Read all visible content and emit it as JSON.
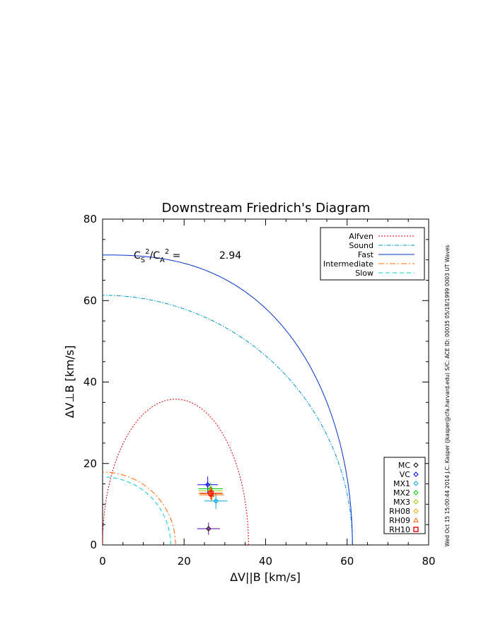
{
  "chart_data": {
    "type": "line",
    "title": "Downstream Friedrich's Diagram",
    "xlabel": "ΔV||B [km/s]",
    "ylabel": "ΔV⊥B [km/s]",
    "xlim": [
      0,
      80
    ],
    "ylim": [
      0,
      80
    ],
    "x_ticks": [
      "0",
      "20",
      "40",
      "60",
      "80"
    ],
    "y_ticks": [
      "0",
      "20",
      "40",
      "60",
      "80"
    ],
    "grid": false,
    "annotation": {
      "label": "CS²/CA² =",
      "value": "2.94"
    },
    "legend_position": "top-right",
    "curves": [
      {
        "name": "Alfven",
        "color": "#dd0000",
        "dash": "2,2",
        "kind": "alfven",
        "radius": 35.8
      },
      {
        "name": "Sound",
        "color": "#0099cc",
        "dash": "6,2,1.5,2",
        "kind": "circle",
        "radius": 61.3
      },
      {
        "name": "Fast",
        "color": "#0033cc",
        "dash": "",
        "kind": "fast",
        "a": 61.3,
        "b": 71.2
      },
      {
        "name": "Intermediate",
        "color": "#ff6600",
        "dash": "8,3,2,3",
        "kind": "circle",
        "radius": 17.9
      },
      {
        "name": "Slow",
        "color": "#00cccc",
        "dash": "6,4",
        "kind": "circle",
        "radius": 16.7
      }
    ],
    "points_legend_position": "bottom-right",
    "points": [
      {
        "name": "MC",
        "marker": "diamond",
        "color": "#000000",
        "x": 26.0,
        "y": 4.0,
        "xerr": 2.8,
        "yerr": 1.5,
        "ebar_color": "#660099"
      },
      {
        "name": "VC",
        "marker": "diamond",
        "color": "#0000ff",
        "x": 25.8,
        "y": 14.8,
        "xerr": 2.5,
        "yerr": 2.0,
        "ebar_color": "#0000ff"
      },
      {
        "name": "MX1",
        "marker": "diamond",
        "color": "#00aadd",
        "x": 27.8,
        "y": 10.8,
        "xerr": 2.8,
        "yerr": 2.0,
        "ebar_color": "#00aadd"
      },
      {
        "name": "MX2",
        "marker": "diamond",
        "color": "#00cc00",
        "x": 26.5,
        "y": 13.8,
        "xerr": 3.0,
        "yerr": 1.5,
        "ebar_color": "#00cc00"
      },
      {
        "name": "MX3",
        "marker": "diamond",
        "color": "#99cc00",
        "x": 26.5,
        "y": 13.3,
        "xerr": 3.0,
        "yerr": 1.5,
        "ebar_color": "#99cc00"
      },
      {
        "name": "RH08",
        "marker": "diamond",
        "color": "#ffaa00",
        "x": 26.5,
        "y": 12.6,
        "xerr": 3.0,
        "yerr": 1.5,
        "ebar_color": "#ffaa00"
      },
      {
        "name": "RH09",
        "marker": "triangle",
        "color": "#ff6600",
        "x": 26.8,
        "y": 12.3,
        "xerr": 3.0,
        "yerr": 1.5,
        "ebar_color": "#ff6600"
      },
      {
        "name": "RH10",
        "marker": "square",
        "color": "#ee0000",
        "x": 26.6,
        "y": 12.7,
        "xerr": 2.8,
        "yerr": 1.5,
        "ebar_color": "#ee0000"
      }
    ]
  },
  "side_text": "Wed Oct 15 15:00:44 2014   J.C. Kasper (jkasper@cfa.harvard.edu)   S/C: ACE ID: 00035 05/18/1999  0003 UT Waves"
}
